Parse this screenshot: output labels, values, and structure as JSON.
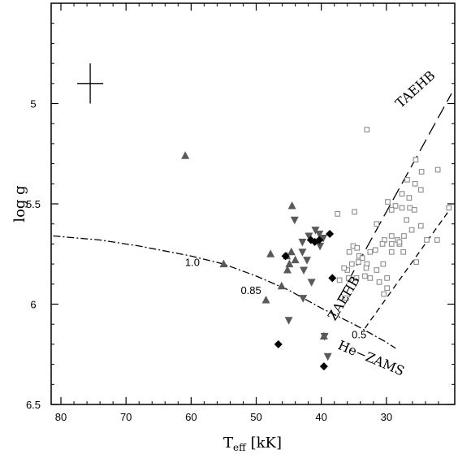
{
  "chart_data": {
    "type": "scatter",
    "xlabel": "T",
    "xlabel_sub": "eff",
    "xlabel_unit": "[kK]",
    "ylabel": "log g",
    "xlim": [
      81.5,
      19.5
    ],
    "ylim": [
      4.5,
      6.5
    ],
    "y_inverted": true,
    "x_inverted": true,
    "grid": false,
    "x_ticks": [
      80,
      70,
      60,
      50,
      40,
      30
    ],
    "x_tick_labels": [
      "80",
      "70",
      "60",
      "50",
      "40",
      "30"
    ],
    "y_ticks": [
      5,
      5.5,
      6,
      6.5
    ],
    "y_tick_labels": [
      "5",
      "5.5",
      "6",
      "6.5"
    ],
    "error_bar": {
      "x": 75.5,
      "y": 4.9,
      "xerr": 2.0,
      "yerr": 0.1
    },
    "series": [
      {
        "marker": "triangle-up",
        "color": "#595959",
        "points": [
          [
            60.9,
            5.26
          ],
          [
            55.0,
            5.8
          ],
          [
            47.8,
            5.75
          ],
          [
            48.5,
            5.98
          ],
          [
            46.1,
            5.91
          ],
          [
            44.9,
            5.8
          ],
          [
            45.3,
            5.76
          ],
          [
            44.6,
            5.74
          ],
          [
            44.0,
            5.78
          ],
          [
            45.2,
            5.83
          ],
          [
            44.5,
            5.51
          ],
          [
            39.6,
            6.16
          ]
        ]
      },
      {
        "marker": "triangle-down",
        "color": "#595959",
        "points": [
          [
            44.1,
            5.58
          ],
          [
            42.9,
            5.69
          ],
          [
            42.9,
            5.74
          ],
          [
            42.2,
            5.78
          ],
          [
            42.7,
            5.83
          ],
          [
            40.9,
            5.63
          ],
          [
            40.3,
            5.65
          ],
          [
            39.7,
            5.67
          ],
          [
            41.9,
            5.66
          ],
          [
            40.2,
            5.71
          ],
          [
            41.5,
            5.89
          ],
          [
            42.8,
            5.97
          ],
          [
            45.0,
            6.08
          ],
          [
            39.5,
            6.16
          ],
          [
            39.0,
            6.26
          ]
        ]
      },
      {
        "marker": "diamond",
        "color": "#000000",
        "points": [
          [
            41.6,
            5.68
          ],
          [
            40.3,
            5.68
          ],
          [
            45.5,
            5.76
          ],
          [
            38.7,
            5.65
          ],
          [
            38.3,
            5.87
          ],
          [
            46.6,
            6.2
          ],
          [
            39.6,
            6.31
          ],
          [
            41.0,
            5.69
          ]
        ]
      },
      {
        "marker": "open-square",
        "color": "#8c8c8c",
        "points": [
          [
            33.0,
            5.13
          ],
          [
            25.5,
            5.28
          ],
          [
            24.6,
            5.34
          ],
          [
            22.1,
            5.33
          ],
          [
            26.8,
            5.38
          ],
          [
            25.6,
            5.4
          ],
          [
            24.7,
            5.43
          ],
          [
            27.6,
            5.45
          ],
          [
            26.5,
            5.47
          ],
          [
            29.8,
            5.49
          ],
          [
            28.6,
            5.51
          ],
          [
            27.6,
            5.52
          ],
          [
            29.2,
            5.53
          ],
          [
            26.4,
            5.52
          ],
          [
            25.7,
            5.53
          ],
          [
            26.9,
            5.58
          ],
          [
            20.4,
            5.52
          ],
          [
            34.9,
            5.54
          ],
          [
            37.5,
            5.55
          ],
          [
            31.5,
            5.6
          ],
          [
            24.7,
            5.61
          ],
          [
            26.1,
            5.63
          ],
          [
            27.3,
            5.66
          ],
          [
            29.2,
            5.66
          ],
          [
            30.3,
            5.68
          ],
          [
            30.6,
            5.7
          ],
          [
            28.0,
            5.7
          ],
          [
            28.3,
            5.68
          ],
          [
            29.2,
            5.7
          ],
          [
            32.5,
            5.74
          ],
          [
            31.7,
            5.73
          ],
          [
            35.1,
            5.71
          ],
          [
            34.5,
            5.72
          ],
          [
            35.7,
            5.74
          ],
          [
            34.2,
            5.76
          ],
          [
            33.7,
            5.77
          ],
          [
            34.3,
            5.79
          ],
          [
            33.0,
            5.8
          ],
          [
            35.3,
            5.8
          ],
          [
            36.0,
            5.83
          ],
          [
            36.5,
            5.82
          ],
          [
            33.1,
            5.82
          ],
          [
            35.8,
            5.87
          ],
          [
            32.5,
            5.87
          ],
          [
            34.6,
            5.87
          ],
          [
            37.2,
            5.88
          ],
          [
            31.5,
            5.83
          ],
          [
            29.9,
            5.87
          ],
          [
            31.1,
            5.89
          ],
          [
            29.9,
            5.92
          ],
          [
            30.4,
            5.95
          ],
          [
            36.2,
            5.97
          ],
          [
            22.2,
            5.68
          ],
          [
            23.8,
            5.68
          ],
          [
            25.4,
            5.79
          ],
          [
            29.2,
            5.74
          ],
          [
            27.4,
            5.74
          ],
          [
            30.5,
            5.8
          ],
          [
            33.3,
            5.86
          ],
          [
            28.0,
            5.69
          ]
        ]
      }
    ],
    "curves": [
      {
        "label": "TAEHB",
        "style": "long-dash",
        "points": [
          [
            37.3,
            5.97
          ],
          [
            20.0,
            4.95
          ]
        ]
      },
      {
        "label": "ZAEHB",
        "style": "short-dash",
        "points": [
          [
            33.3,
            6.12
          ],
          [
            20.3,
            5.53
          ]
        ]
      },
      {
        "label": "He−ZAMS",
        "style": "dash-dot",
        "points": [
          [
            81.2,
            5.66
          ],
          [
            74.0,
            5.68
          ],
          [
            68.0,
            5.71
          ],
          [
            60.0,
            5.76
          ],
          [
            55.0,
            5.8
          ],
          [
            50.0,
            5.86
          ],
          [
            45.0,
            5.93
          ],
          [
            40.0,
            6.02
          ],
          [
            35.0,
            6.1
          ],
          [
            30.0,
            6.19
          ],
          [
            28.6,
            6.22
          ]
        ]
      }
    ],
    "mass_labels": [
      {
        "text": "1.0",
        "x": 59.8,
        "y": 5.79
      },
      {
        "text": "0.85",
        "x": 50.8,
        "y": 5.93
      },
      {
        "text": "0.5",
        "x": 34.2,
        "y": 6.15
      }
    ]
  }
}
